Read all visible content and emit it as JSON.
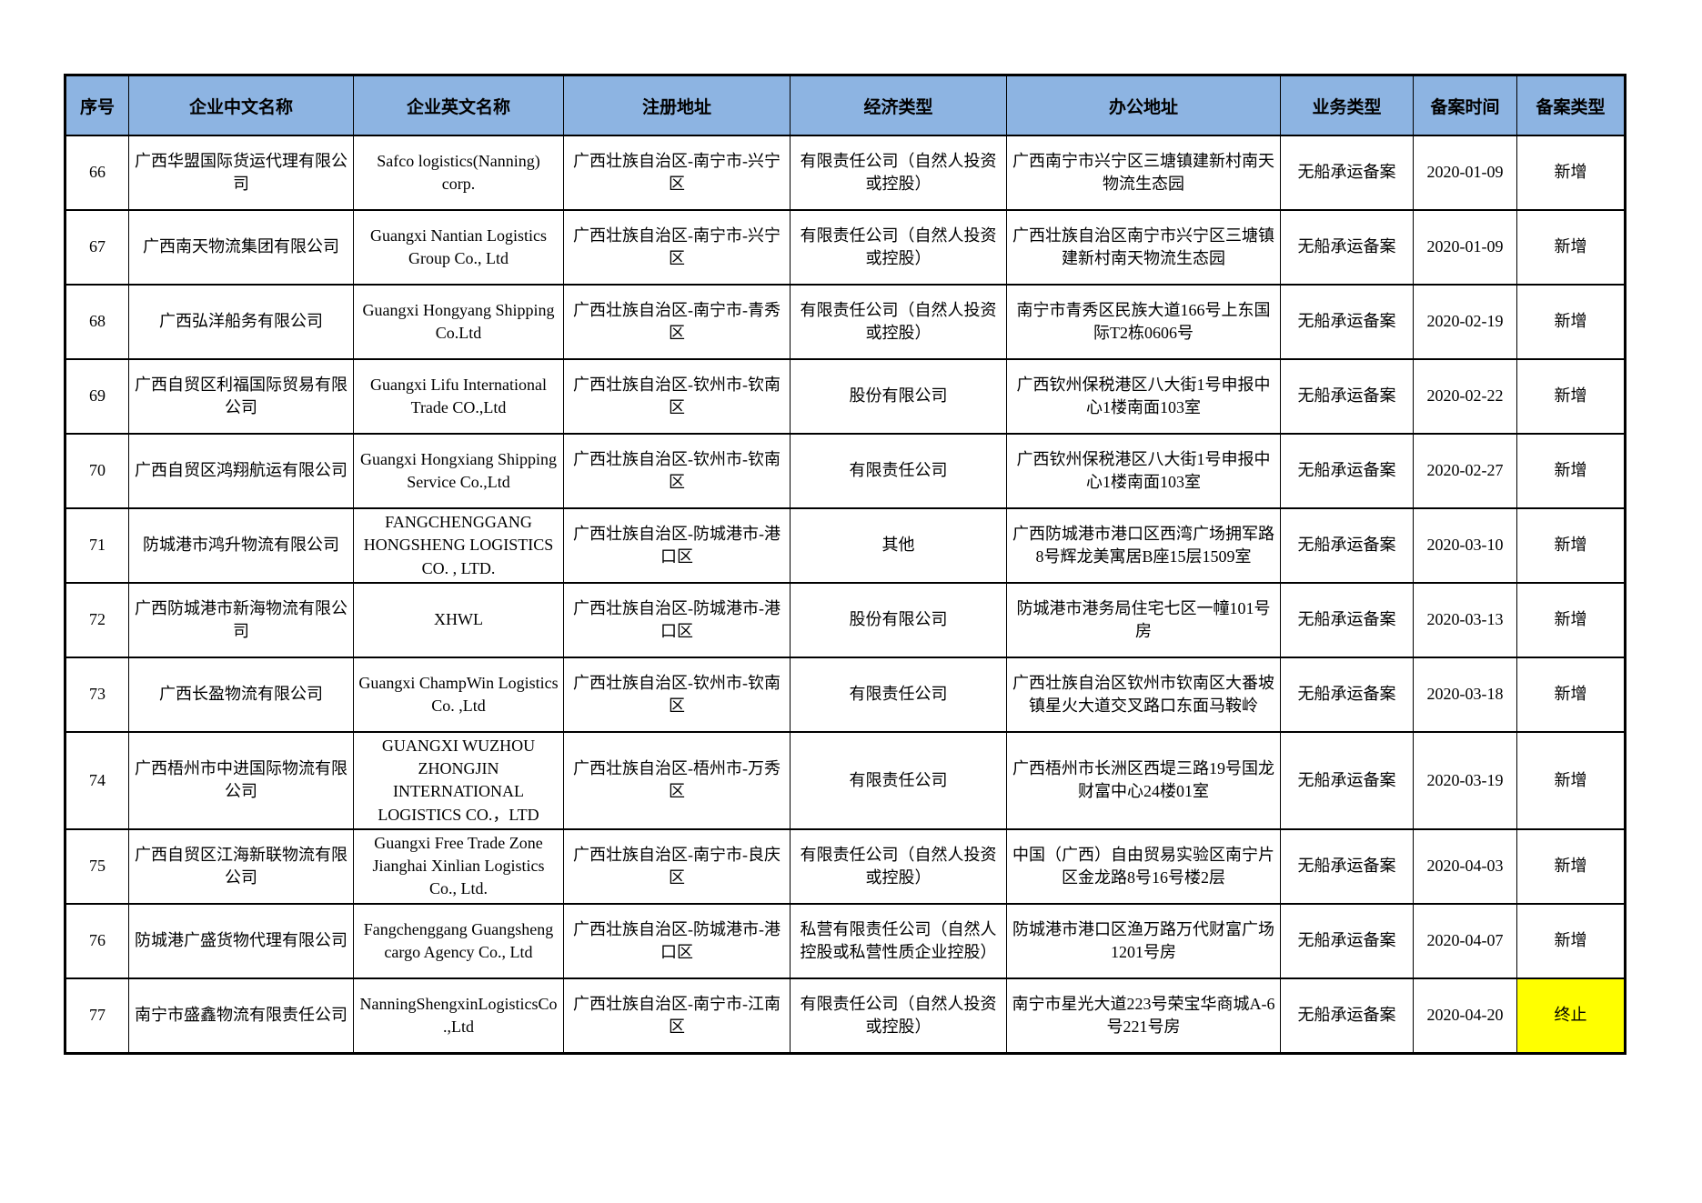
{
  "colors": {
    "header_bg": "#8DB4E2",
    "highlight_bg": "#FFFF00",
    "border": "#000000"
  },
  "table": {
    "headers": [
      "序号",
      "企业中文名称",
      "企业英文名称",
      "注册地址",
      "经济类型",
      "办公地址",
      "业务类型",
      "备案时间",
      "备案类型"
    ],
    "rows": [
      {
        "no": "66",
        "cn_name": "广西华盟国际货运代理有限公司",
        "en_name": "Safco logistics(Nanning) corp.",
        "reg_addr": "广西壮族自治区-南宁市-兴宁区",
        "econ_type": "有限责任公司（自然人投资或控股）",
        "office_addr": "广西南宁市兴宁区三塘镇建新村南天物流生态园",
        "biz_type": "无船承运备案",
        "record_date": "2020-01-09",
        "record_type": "新增",
        "highlight": false
      },
      {
        "no": "67",
        "cn_name": "广西南天物流集团有限公司",
        "en_name": "Guangxi Nantian Logistics Group Co., Ltd",
        "reg_addr": "广西壮族自治区-南宁市-兴宁区",
        "econ_type": "有限责任公司（自然人投资或控股）",
        "office_addr": "广西壮族自治区南宁市兴宁区三塘镇建新村南天物流生态园",
        "biz_type": "无船承运备案",
        "record_date": "2020-01-09",
        "record_type": "新增",
        "highlight": false
      },
      {
        "no": "68",
        "cn_name": "广西弘洋船务有限公司",
        "en_name": "Guangxi Hongyang Shipping Co.Ltd",
        "reg_addr": "广西壮族自治区-南宁市-青秀区",
        "econ_type": "有限责任公司（自然人投资或控股）",
        "office_addr": "南宁市青秀区民族大道166号上东国际T2栋0606号",
        "biz_type": "无船承运备案",
        "record_date": "2020-02-19",
        "record_type": "新增",
        "highlight": false
      },
      {
        "no": "69",
        "cn_name": "广西自贸区利福国际贸易有限公司",
        "en_name": "Guangxi Lifu International Trade CO.,Ltd",
        "reg_addr": "广西壮族自治区-钦州市-钦南区",
        "econ_type": "股份有限公司",
        "office_addr": "广西钦州保税港区八大街1号申报中心1楼南面103室",
        "biz_type": "无船承运备案",
        "record_date": "2020-02-22",
        "record_type": "新增",
        "highlight": false
      },
      {
        "no": "70",
        "cn_name": "广西自贸区鸿翔航运有限公司",
        "en_name": "Guangxi Hongxiang Shipping Service Co.,Ltd",
        "reg_addr": "广西壮族自治区-钦州市-钦南区",
        "econ_type": "有限责任公司",
        "office_addr": "广西钦州保税港区八大街1号申报中心1楼南面103室",
        "biz_type": "无船承运备案",
        "record_date": "2020-02-27",
        "record_type": "新增",
        "highlight": false
      },
      {
        "no": "71",
        "cn_name": "防城港市鸿升物流有限公司",
        "en_name": "FANGCHENGGANG HONGSHENG LOGISTICS CO. , LTD.",
        "reg_addr": "广西壮族自治区-防城港市-港口区",
        "econ_type": "其他",
        "office_addr": "广西防城港市港口区西湾广场拥军路8号辉龙美寓居B座15层1509室",
        "biz_type": "无船承运备案",
        "record_date": "2020-03-10",
        "record_type": "新增",
        "highlight": false
      },
      {
        "no": "72",
        "cn_name": "广西防城港市新海物流有限公司",
        "en_name": "XHWL",
        "reg_addr": "广西壮族自治区-防城港市-港口区",
        "econ_type": "股份有限公司",
        "office_addr": "防城港市港务局住宅七区一幢101号房",
        "biz_type": "无船承运备案",
        "record_date": "2020-03-13",
        "record_type": "新增",
        "highlight": false
      },
      {
        "no": "73",
        "cn_name": "广西长盈物流有限公司",
        "en_name": "Guangxi ChampWin Logistics Co. ,Ltd",
        "reg_addr": "广西壮族自治区-钦州市-钦南区",
        "econ_type": "有限责任公司",
        "office_addr": "广西壮族自治区钦州市钦南区大番坡镇星火大道交叉路口东面马鞍岭",
        "biz_type": "无船承运备案",
        "record_date": "2020-03-18",
        "record_type": "新增",
        "highlight": false
      },
      {
        "no": "74",
        "cn_name": "广西梧州市中进国际物流有限公司",
        "en_name": "GUANGXI WUZHOU ZHONGJIN INTERNATIONAL LOGISTICS CO.，LTD",
        "reg_addr": "广西壮族自治区-梧州市-万秀区",
        "econ_type": "有限责任公司",
        "office_addr": "广西梧州市长洲区西堤三路19号国龙财富中心24楼01室",
        "biz_type": "无船承运备案",
        "record_date": "2020-03-19",
        "record_type": "新增",
        "highlight": false
      },
      {
        "no": "75",
        "cn_name": "广西自贸区江海新联物流有限公司",
        "en_name": "Guangxi Free Trade Zone Jianghai Xinlian Logistics Co., Ltd.",
        "reg_addr": "广西壮族自治区-南宁市-良庆区",
        "econ_type": "有限责任公司（自然人投资或控股）",
        "office_addr": "中国（广西）自由贸易实验区南宁片区金龙路8号16号楼2层",
        "biz_type": "无船承运备案",
        "record_date": "2020-04-03",
        "record_type": "新增",
        "highlight": false
      },
      {
        "no": "76",
        "cn_name": "防城港广盛货物代理有限公司",
        "en_name": "Fangchenggang Guangsheng cargo Agency Co., Ltd",
        "reg_addr": "广西壮族自治区-防城港市-港口区",
        "econ_type": "私营有限责任公司（自然人控股或私营性质企业控股）",
        "office_addr": "防城港市港口区渔万路万代财富广场1201号房",
        "biz_type": "无船承运备案",
        "record_date": "2020-04-07",
        "record_type": "新增",
        "highlight": false
      },
      {
        "no": "77",
        "cn_name": "南宁市盛鑫物流有限责任公司",
        "en_name": "NanningShengxinLogisticsCo.,Ltd",
        "reg_addr": "广西壮族自治区-南宁市-江南区",
        "econ_type": "有限责任公司（自然人投资或控股）",
        "office_addr": "南宁市星光大道223号荣宝华商城A-6号221号房",
        "biz_type": "无船承运备案",
        "record_date": "2020-04-20",
        "record_type": "终止",
        "highlight": true
      }
    ]
  }
}
